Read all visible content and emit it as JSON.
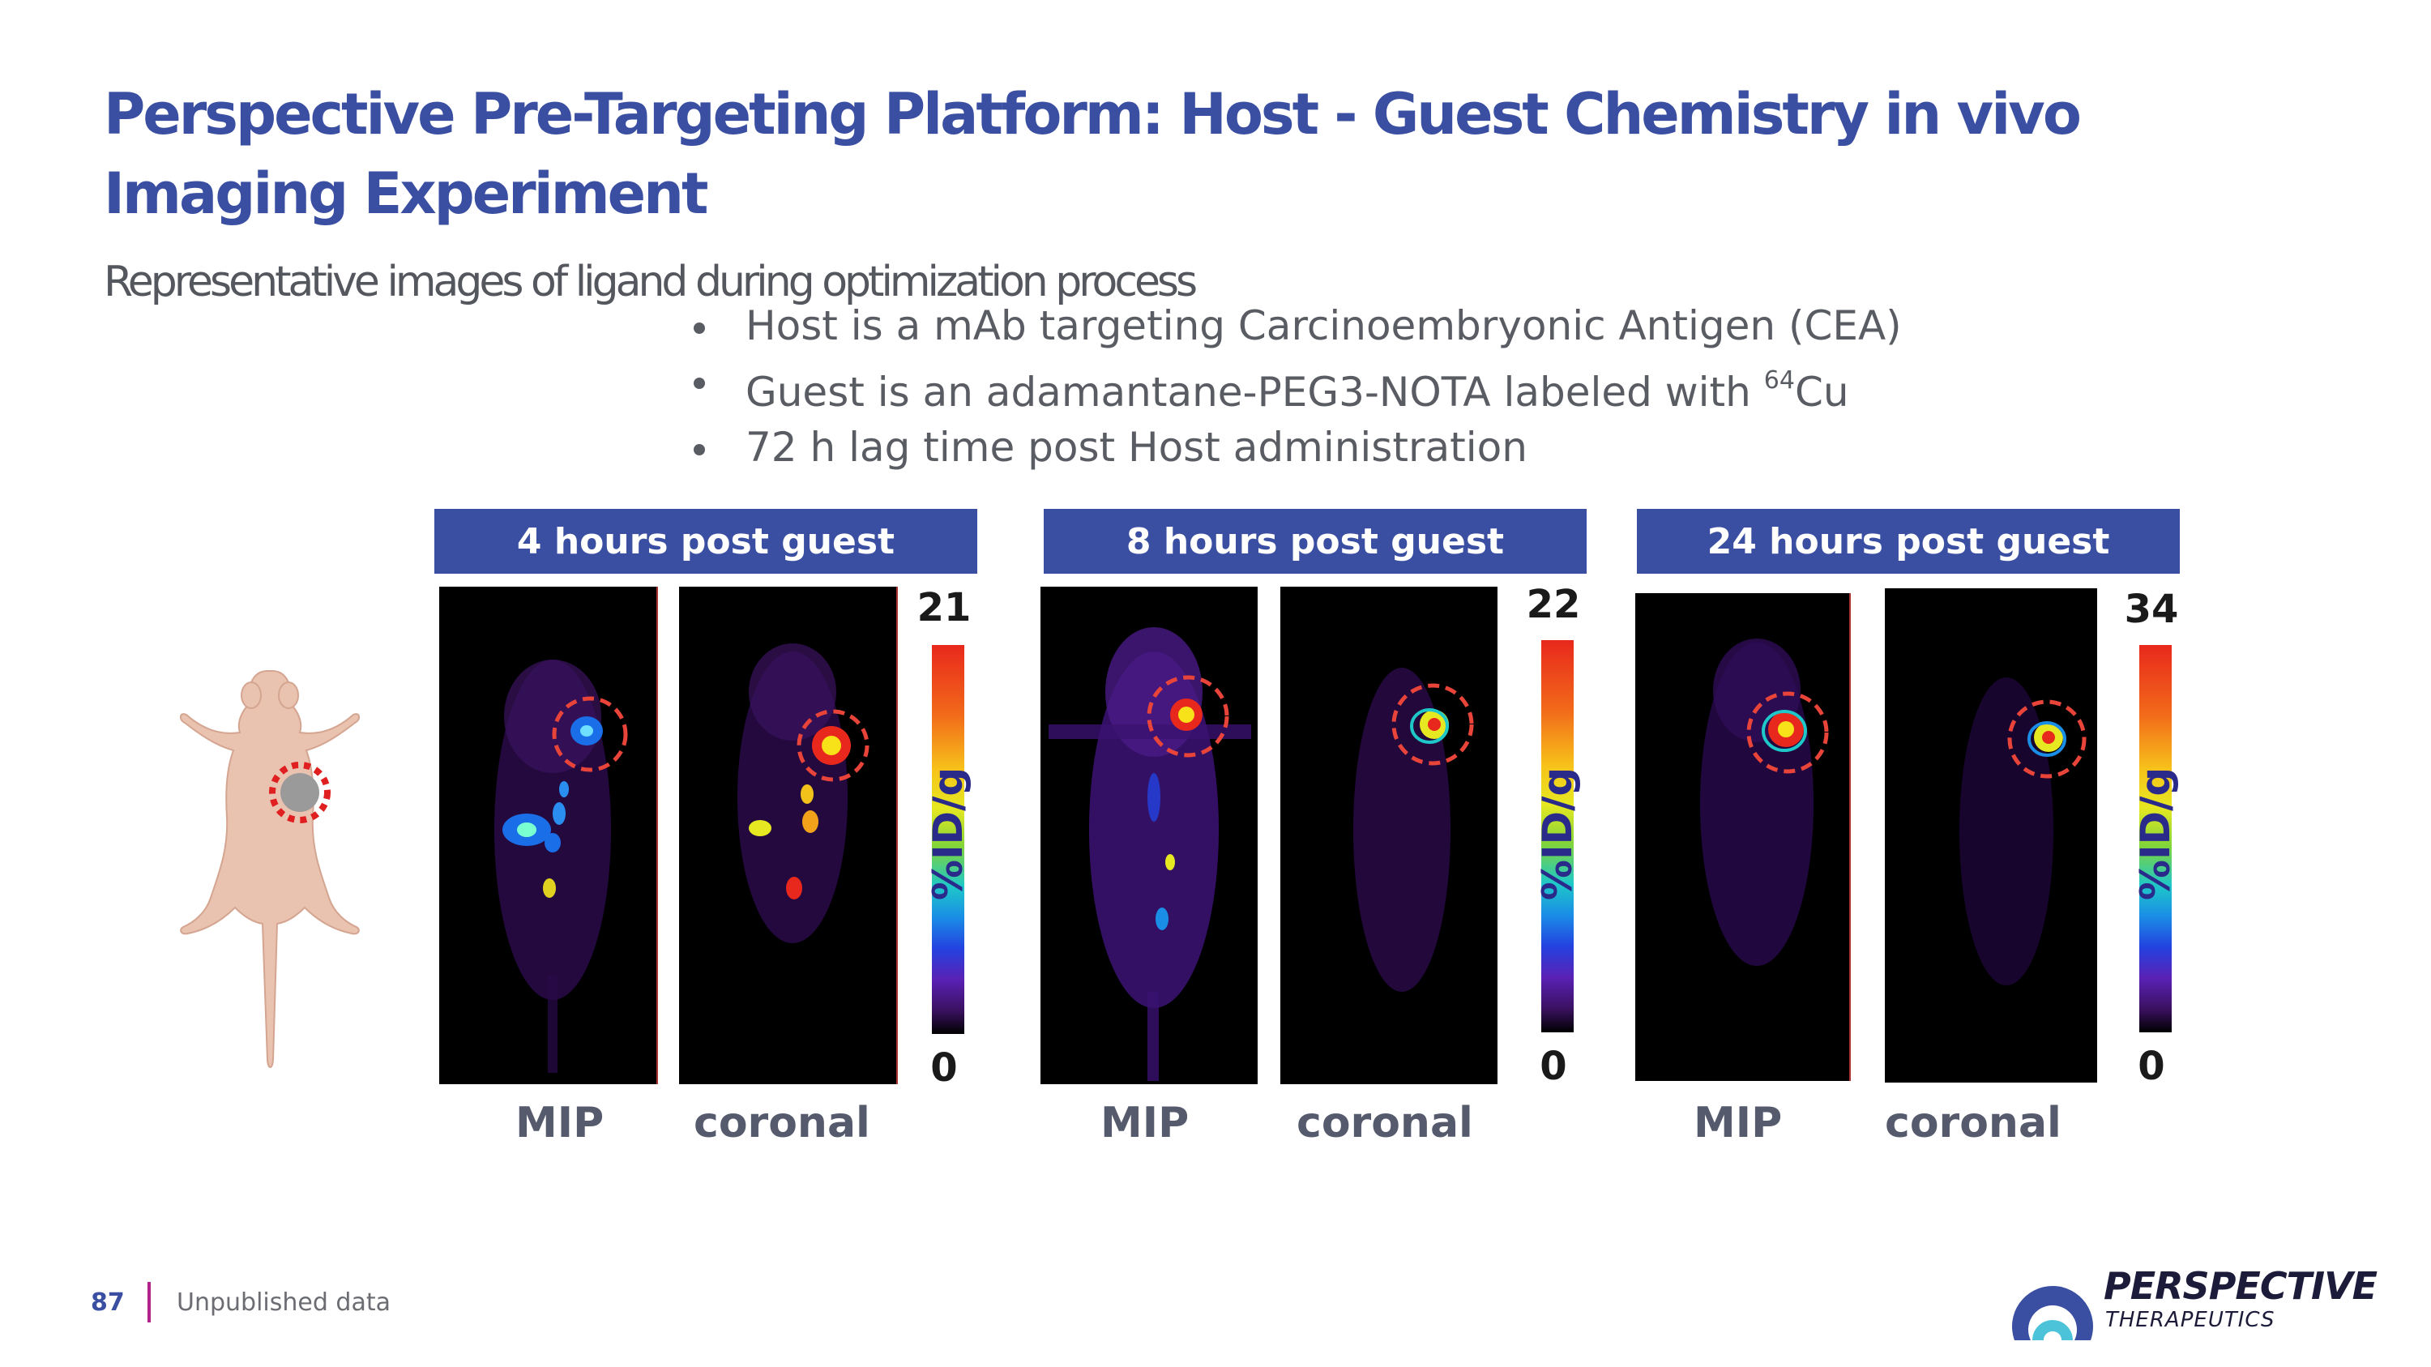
{
  "slide": {
    "title": "Perspective Pre-Targeting Platform: Host - Guest Chemistry in vivo Imaging Experiment",
    "subtitle": "Representative images of ligand during optimization process",
    "bullets": {
      "b1": "Host is a mAb targeting Carcinoembryonic Antigen (CEA)",
      "b2_pre": "Guest is an adamantane-PEG3-NOTA labeled with ",
      "b2_sup": "64",
      "b2_post": "Cu",
      "b3": "72 h lag time post Host administration"
    }
  },
  "panels": [
    {
      "header": "4 hours post guest",
      "scale_max": "21",
      "scale_min": "0",
      "unit": "%ID/g",
      "left_label": "MIP",
      "right_label": "coronal"
    },
    {
      "header": "8 hours post guest",
      "scale_max": "22",
      "scale_min": "0",
      "unit": "%ID/g",
      "left_label": "MIP",
      "right_label": "coronal"
    },
    {
      "header": "24 hours post guest",
      "scale_max": "34",
      "scale_min": "0",
      "unit": "%ID/g",
      "left_label": "MIP",
      "right_label": "coronal"
    }
  ],
  "footer": {
    "page_number": "87",
    "note": "Unpublished data"
  },
  "logo": {
    "word1": "PERSPECTIVE",
    "word2": "THERAPEUTICS"
  },
  "colors": {
    "brand_blue": "#3a4fa2",
    "accent_magenta": "#b0238a",
    "tumor_circle": "#e8443a"
  }
}
